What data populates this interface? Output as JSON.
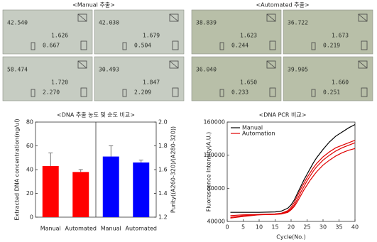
{
  "photos": [
    {
      "title": "<Manual 추출>",
      "panels": [
        {
          "readings": [
            "42.540",
            "1.626",
            "0.667"
          ]
        },
        {
          "readings": [
            "42.030",
            "1.679",
            "0.504"
          ]
        },
        {
          "readings": [
            "58.474",
            "1.720",
            "2.270"
          ]
        },
        {
          "readings": [
            "30.493",
            "1.847",
            "2.209"
          ]
        }
      ]
    },
    {
      "title": "<Automated 추출>",
      "panels": [
        {
          "readings": [
            "38.839",
            "1.623",
            "0.244"
          ]
        },
        {
          "readings": [
            "36.722",
            "1.673",
            "0.219"
          ]
        },
        {
          "readings": [
            "36.040",
            "1.650",
            "0.233"
          ]
        },
        {
          "readings": [
            "39.905",
            "1.660",
            "0.251"
          ]
        }
      ]
    }
  ],
  "chart_data": [
    {
      "type": "bar",
      "title": "<DNA 추출 농도 및 순도 비교>",
      "y_label": "Extracted DNA concentration(ng/ul)",
      "y2_label": "Purity((A260-320)/(A280-320))",
      "categories": [
        "Manual",
        "Automated",
        "Manual",
        "Automated"
      ],
      "series": [
        {
          "color": "#ff0000",
          "values": [
            43,
            38,
            null,
            null
          ],
          "errors": [
            11,
            2,
            null,
            null
          ]
        },
        {
          "color": "#0000ff",
          "axis": "y2",
          "values": [
            null,
            null,
            1.71,
            1.66
          ],
          "errors": [
            null,
            null,
            0.09,
            0.02
          ]
        }
      ],
      "ylim": [
        0,
        80
      ],
      "yticks": [
        0,
        20,
        40,
        60,
        80
      ],
      "y2lim": [
        1.2,
        2.0
      ],
      "y2ticks": [
        1.2,
        1.4,
        1.6,
        1.8,
        {
          "value": 2,
          "label": "2.0"
        }
      ]
    },
    {
      "type": "line",
      "title": "<DNA PCR 비교>",
      "x_label": "Cycle(No.)",
      "y_label": "Fluorescence Intensity(A.U.)",
      "legend": "upper-left",
      "x": [
        1,
        5,
        10,
        15,
        17,
        19,
        20,
        21,
        22,
        23,
        24,
        25,
        26,
        27,
        28,
        30,
        32,
        34,
        36,
        38,
        40
      ],
      "series": [
        {
          "name": "Manual",
          "color": "#000000",
          "values": [
            51000,
            51000,
            51000,
            51500,
            52500,
            56000,
            60000,
            66000,
            74000,
            82000,
            90000,
            97000,
            104000,
            111000,
            117000,
            127000,
            136000,
            143000,
            148000,
            153000,
            157000
          ]
        },
        {
          "name": "Automation",
          "color": "#e00000",
          "values": [
            44000,
            46000,
            48000,
            49000,
            50000,
            53000,
            57000,
            63000,
            71000,
            79000,
            86000,
            93000,
            99000,
            105000,
            110000,
            118000,
            124000,
            129000,
            132000,
            135000,
            138000
          ]
        },
        {
          "color": "#e00000",
          "values": [
            47000,
            48000,
            48500,
            49000,
            49500,
            52000,
            55000,
            60000,
            67000,
            75000,
            82000,
            89000,
            95000,
            101000,
            106000,
            114000,
            120000,
            125000,
            129000,
            132000,
            135000
          ]
        },
        {
          "color": "#e00000",
          "values": [
            45000,
            47000,
            48000,
            48500,
            49000,
            51000,
            54000,
            58000,
            64000,
            71000,
            78000,
            84000,
            90000,
            95000,
            100000,
            108000,
            114000,
            119000,
            123000,
            126000,
            128000
          ]
        }
      ],
      "xlim": [
        0,
        40
      ],
      "xticks": [
        0,
        5,
        10,
        15,
        20,
        25,
        30,
        35,
        40
      ],
      "ylim": [
        40000,
        160000
      ],
      "yticks": [
        40000,
        80000,
        120000,
        160000
      ]
    }
  ]
}
